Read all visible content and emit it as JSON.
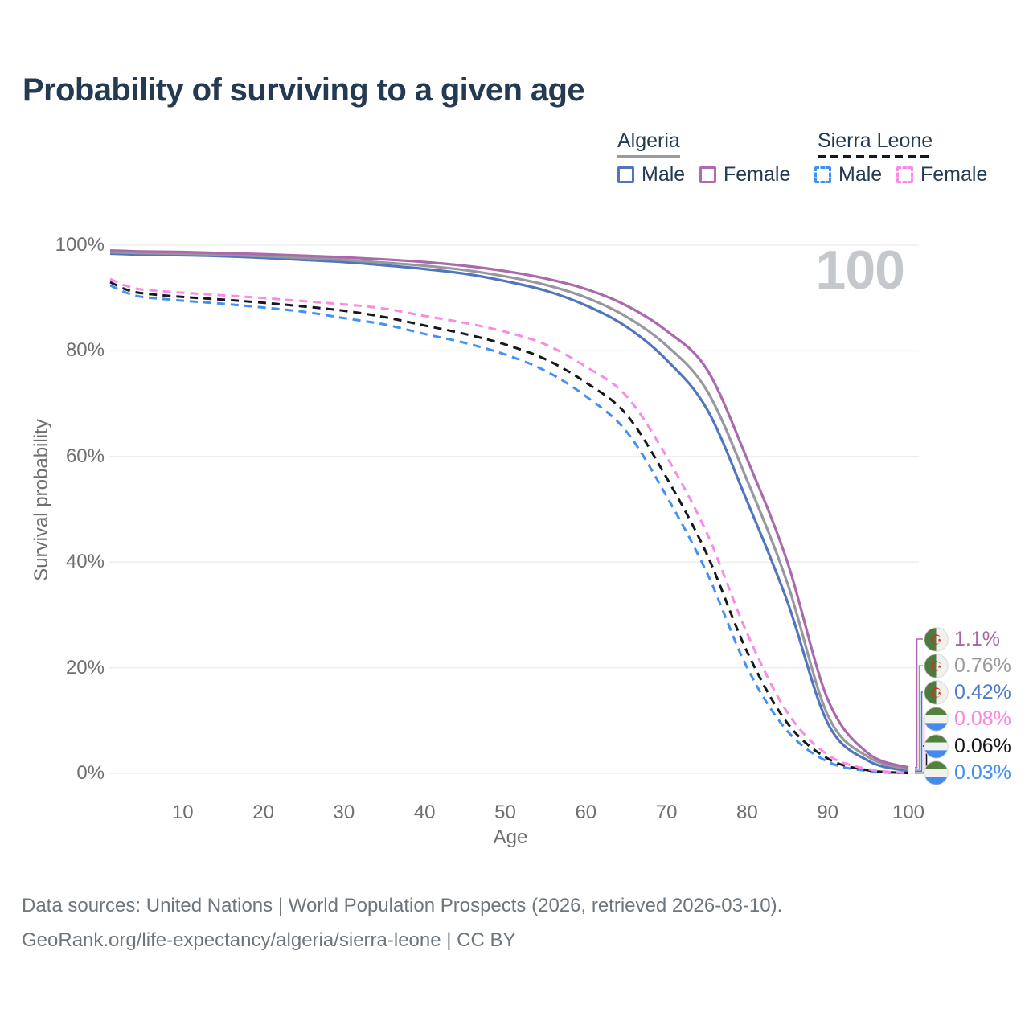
{
  "title": "Probability of surviving to a given age",
  "watermark": "100",
  "legend": {
    "groups": [
      {
        "label": "Algeria",
        "line_style": "solid",
        "underline_color": "#9b9b9b",
        "items": [
          {
            "label": "Male",
            "color": "#5276be",
            "box_style": "solid"
          },
          {
            "label": "Female",
            "color": "#b06bae",
            "box_style": "solid"
          }
        ]
      },
      {
        "label": "Sierra Leone",
        "line_style": "dashed",
        "underline_color": "#17181c",
        "items": [
          {
            "label": "Male",
            "color": "#4190f2",
            "box_style": "dashed"
          },
          {
            "label": "Female",
            "color": "#f88be4",
            "box_style": "dashed"
          }
        ]
      }
    ]
  },
  "chart_data": {
    "type": "line",
    "title": "Probability of surviving to a given age",
    "xlabel": "Age",
    "ylabel": "Survival probability",
    "xlim": [
      1,
      100
    ],
    "ylim": [
      0,
      100
    ],
    "grid": "horizontal",
    "legend_position": "top-right",
    "x_ticks": [
      "10",
      "20",
      "30",
      "40",
      "50",
      "60",
      "70",
      "80",
      "90",
      "100"
    ],
    "y_ticks": [
      "0%",
      "20%",
      "40%",
      "60%",
      "80%",
      "100%"
    ],
    "hovered_age": "100",
    "x": [
      1,
      3,
      5,
      10,
      15,
      20,
      25,
      30,
      35,
      40,
      45,
      50,
      55,
      60,
      65,
      70,
      75,
      80,
      85,
      90,
      95,
      100
    ],
    "series": [
      {
        "name": "Algeria Female",
        "country": "Algeria",
        "sex": "Female",
        "color": "#ac68ac",
        "dash": false,
        "flag": "algeria",
        "end_label": "1.1%",
        "end_label_color": "#a9659e",
        "values": [
          99.0,
          98.9,
          98.8,
          98.7,
          98.5,
          98.3,
          98.0,
          97.7,
          97.3,
          96.8,
          96.1,
          95.1,
          93.7,
          91.7,
          88.6,
          83.8,
          76.5,
          59.5,
          40.0,
          14.0,
          3.8,
          1.1
        ]
      },
      {
        "name": "Algeria",
        "country": "Algeria",
        "sex": "Both",
        "color": "#97979d",
        "dash": false,
        "flag": "algeria",
        "end_label": "0.76%",
        "end_label_color": "#9a9a9a",
        "values": [
          98.7,
          98.6,
          98.5,
          98.4,
          98.2,
          97.9,
          97.6,
          97.2,
          96.7,
          96.1,
          95.3,
          94.1,
          92.5,
          90.1,
          86.5,
          81.0,
          72.5,
          55.5,
          36.0,
          11.0,
          3.1,
          0.76
        ]
      },
      {
        "name": "Algeria Male",
        "country": "Algeria",
        "sex": "Male",
        "color": "#5276be",
        "dash": false,
        "flag": "algeria",
        "end_label": "0.42%",
        "end_label_color": "#4d7bd0",
        "values": [
          98.4,
          98.3,
          98.2,
          98.1,
          97.9,
          97.6,
          97.2,
          96.8,
          96.2,
          95.5,
          94.6,
          93.2,
          91.4,
          88.6,
          84.6,
          78.3,
          69.0,
          51.5,
          32.5,
          9.5,
          2.4,
          0.42
        ]
      },
      {
        "name": "Sierra Leone Female",
        "country": "Sierra Leone",
        "sex": "Female",
        "color": "#f88be4",
        "dash": true,
        "flag": "sierra-leone",
        "end_label": "0.08%",
        "end_label_color": "#fb87e0",
        "values": [
          93.6,
          92.3,
          91.6,
          91.0,
          90.5,
          90.0,
          89.4,
          88.8,
          88.0,
          86.6,
          85.3,
          83.6,
          81.2,
          77.0,
          71.5,
          60.0,
          45.5,
          26.5,
          11.5,
          3.5,
          0.8,
          0.08
        ]
      },
      {
        "name": "Sierra Leone",
        "country": "Sierra Leone",
        "sex": "Both",
        "color": "#17181c",
        "dash": true,
        "flag": "sierra-leone",
        "end_label": "0.06%",
        "end_label_color": "#17181c",
        "values": [
          93.0,
          91.6,
          90.9,
          90.2,
          89.7,
          89.1,
          88.4,
          87.6,
          86.4,
          84.8,
          83.2,
          81.2,
          78.4,
          74.0,
          68.0,
          56.0,
          41.5,
          23.0,
          9.5,
          2.8,
          0.6,
          0.06
        ]
      },
      {
        "name": "Sierra Leone Male",
        "country": "Sierra Leone",
        "sex": "Male",
        "color": "#4190f2",
        "dash": true,
        "flag": "sierra-leone",
        "end_label": "0.03%",
        "end_label_color": "#418ff5",
        "values": [
          92.4,
          91.0,
          90.2,
          89.5,
          88.9,
          88.2,
          87.4,
          86.2,
          85.0,
          83.2,
          81.5,
          79.3,
          76.2,
          71.4,
          64.8,
          52.5,
          38.0,
          20.0,
          8.0,
          2.2,
          0.45,
          0.03
        ]
      }
    ]
  },
  "footer": {
    "line1": "Data sources: United Nations | World Population Prospects (2026, retrieved 2026-03-10).",
    "line2": "GeoRank.org/life-expectancy/algeria/sierra-leone | CC BY"
  }
}
